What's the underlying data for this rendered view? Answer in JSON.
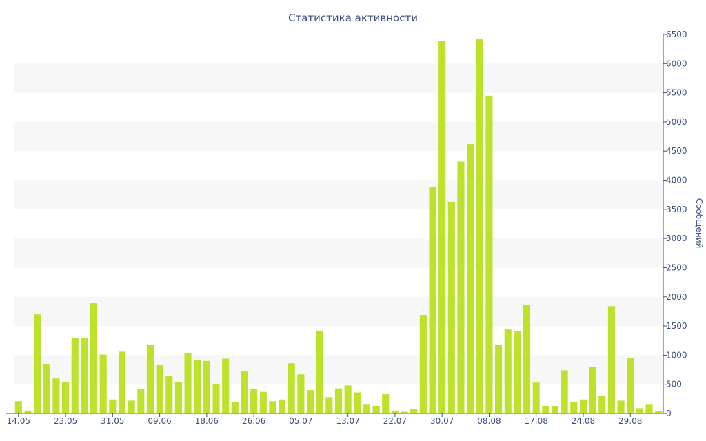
{
  "chart_data": {
    "type": "bar",
    "title": "Статистика активности",
    "ylabel": "Сообщений",
    "xlabel": "",
    "ylim": [
      0,
      6500
    ],
    "y_ticks": [
      0,
      500,
      1000,
      1500,
      2000,
      2500,
      3000,
      3500,
      4000,
      4500,
      5000,
      5500,
      6000,
      6500
    ],
    "y_axis_side": "right",
    "grid": "alternating horizontal bands",
    "colors": {
      "bar": "#bde22b",
      "text": "#3e4f84",
      "band": "#f7f7f7",
      "axis": "#3e4f84"
    },
    "x_tick_labels": [
      {
        "label": "14.05",
        "index": 0
      },
      {
        "label": "23.05",
        "index": 5
      },
      {
        "label": "31.05",
        "index": 10
      },
      {
        "label": "09.06",
        "index": 15
      },
      {
        "label": "18.06",
        "index": 20
      },
      {
        "label": "26.06",
        "index": 25
      },
      {
        "label": "05.07",
        "index": 30
      },
      {
        "label": "13.07",
        "index": 35
      },
      {
        "label": "22.07",
        "index": 40
      },
      {
        "label": "30.07",
        "index": 45
      },
      {
        "label": "08.08",
        "index": 50
      },
      {
        "label": "17.08",
        "index": 55
      },
      {
        "label": "24.08",
        "index": 60
      },
      {
        "label": "29.08",
        "index": 65
      }
    ],
    "values": [
      210,
      50,
      1700,
      850,
      600,
      540,
      1300,
      1290,
      1890,
      1010,
      240,
      1060,
      220,
      420,
      1180,
      830,
      650,
      540,
      1040,
      920,
      900,
      510,
      940,
      200,
      720,
      420,
      370,
      210,
      240,
      860,
      670,
      400,
      1420,
      280,
      430,
      480,
      360,
      150,
      130,
      330,
      50,
      30,
      80,
      1690,
      3880,
      6390,
      3630,
      4320,
      4620,
      6430,
      5450,
      1180,
      1440,
      1410,
      1860,
      530,
      130,
      130,
      740,
      190,
      240,
      800,
      300,
      1840,
      220,
      950,
      90,
      150,
      40
    ]
  }
}
